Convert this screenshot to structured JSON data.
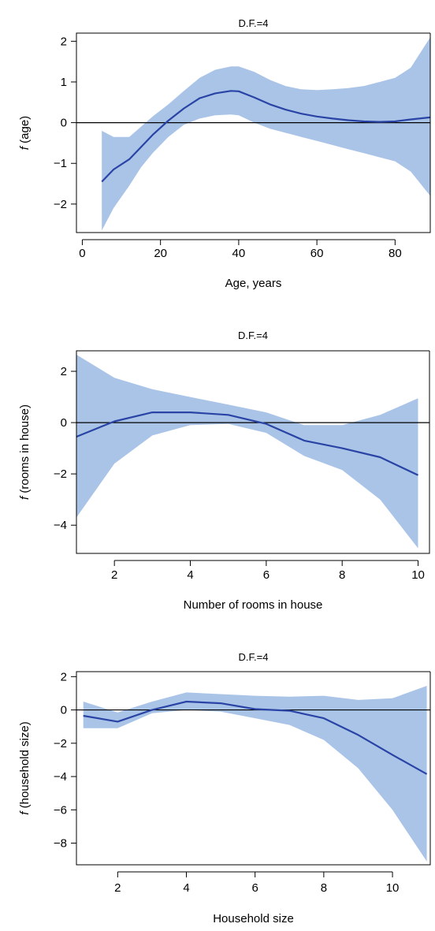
{
  "style": {
    "band_color": "#aac4e8",
    "line_color": "#2a44a6"
  },
  "chart_data": [
    {
      "type": "line",
      "title": "D.F.=4",
      "xlabel": "Age, years",
      "ylabel_italic": "f",
      "ylabel_rest": " (age)",
      "xlim": [
        -1.5,
        89
      ],
      "ylim": [
        -2.7,
        2.2
      ],
      "xticks": [
        0,
        20,
        40,
        60,
        80
      ],
      "yticks": [
        -2,
        -1,
        0,
        1,
        2
      ],
      "ytick_labels": [
        "−2",
        "−1",
        "0",
        "1",
        "2"
      ],
      "series": [
        {
          "x": [
            5,
            8,
            12,
            15,
            18,
            22,
            26,
            30,
            34,
            38,
            40,
            44,
            48,
            52,
            56,
            60,
            64,
            68,
            72,
            76,
            80,
            84,
            89
          ],
          "y": [
            -1.45,
            -1.15,
            -0.9,
            -0.6,
            -0.3,
            0.05,
            0.35,
            0.6,
            0.72,
            0.78,
            0.77,
            0.62,
            0.45,
            0.32,
            0.22,
            0.15,
            0.1,
            0.06,
            0.03,
            0.02,
            0.03,
            0.08,
            0.13
          ],
          "lower": [
            -2.65,
            -2.1,
            -1.55,
            -1.1,
            -0.75,
            -0.35,
            -0.05,
            0.1,
            0.18,
            0.2,
            0.18,
            0.0,
            -0.15,
            -0.25,
            -0.35,
            -0.45,
            -0.55,
            -0.65,
            -0.75,
            -0.85,
            -0.95,
            -1.2,
            -1.8
          ],
          "upper": [
            -0.2,
            -0.35,
            -0.35,
            -0.1,
            0.15,
            0.45,
            0.78,
            1.1,
            1.3,
            1.38,
            1.38,
            1.25,
            1.05,
            0.9,
            0.82,
            0.8,
            0.82,
            0.85,
            0.9,
            1.0,
            1.1,
            1.35,
            2.1
          ]
        }
      ]
    },
    {
      "type": "line",
      "title": "D.F.=4",
      "xlabel": "Number of rooms in house",
      "ylabel_italic": "f",
      "ylabel_rest": " (rooms in house)",
      "xlim": [
        1,
        10.3
      ],
      "ylim": [
        -5.1,
        2.8
      ],
      "xticks": [
        2,
        4,
        6,
        8,
        10
      ],
      "yticks": [
        -4,
        -2,
        0,
        2
      ],
      "ytick_labels": [
        "−4",
        "−2",
        "0",
        "2"
      ],
      "series": [
        {
          "x": [
            1,
            2,
            3,
            4,
            5,
            6,
            7,
            8,
            9,
            10
          ],
          "y": [
            -0.55,
            0.05,
            0.4,
            0.4,
            0.3,
            -0.05,
            -0.7,
            -1.0,
            -1.35,
            -2.05
          ],
          "lower": [
            -3.7,
            -1.6,
            -0.5,
            -0.1,
            -0.05,
            -0.4,
            -1.3,
            -1.85,
            -3.0,
            -4.9
          ],
          "upper": [
            2.65,
            1.75,
            1.3,
            1.0,
            0.7,
            0.4,
            -0.1,
            -0.1,
            0.3,
            0.95
          ]
        }
      ]
    },
    {
      "type": "line",
      "title": "D.F.=4",
      "xlabel": "Household size",
      "ylabel_italic": "f",
      "ylabel_rest": " (household size)",
      "xlim": [
        0.8,
        11.1
      ],
      "ylim": [
        -9.3,
        2.3
      ],
      "xticks": [
        2,
        4,
        6,
        8,
        10
      ],
      "yticks": [
        -8,
        -6,
        -4,
        -2,
        0,
        2
      ],
      "ytick_labels": [
        "−8",
        "−6",
        "−4",
        "−2",
        "0",
        "2"
      ],
      "series": [
        {
          "x": [
            1,
            2,
            3,
            4,
            5,
            6,
            7,
            8,
            9,
            10,
            11
          ],
          "y": [
            -0.35,
            -0.7,
            0.0,
            0.5,
            0.4,
            0.05,
            -0.05,
            -0.5,
            -1.5,
            -2.7,
            -3.85
          ],
          "lower": [
            -1.1,
            -1.1,
            -0.2,
            0.0,
            -0.1,
            -0.5,
            -0.9,
            -1.8,
            -3.5,
            -6.0,
            -9.1
          ],
          "upper": [
            0.5,
            -0.15,
            0.5,
            1.05,
            0.95,
            0.85,
            0.8,
            0.85,
            0.6,
            0.7,
            1.45
          ]
        }
      ]
    }
  ]
}
